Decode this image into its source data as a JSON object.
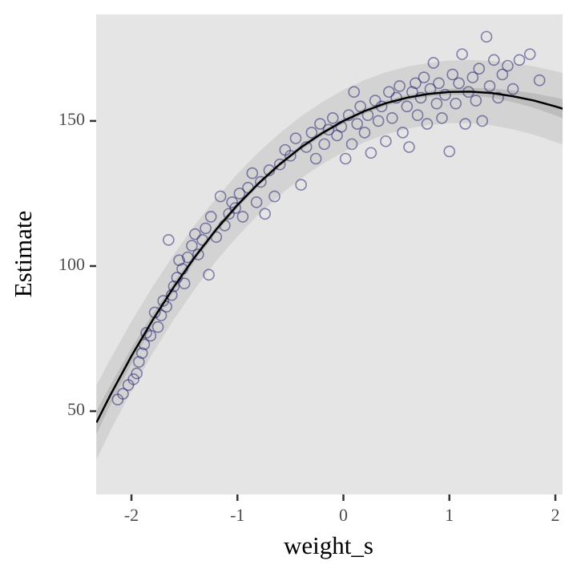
{
  "chart_data": {
    "type": "scatter",
    "xlabel": "weight_s",
    "ylabel": "Estimate",
    "xlim": [
      -2.333,
      2.068
    ],
    "ylim": [
      21.3,
      186.7
    ],
    "xticks": [
      -2,
      -1,
      0,
      1,
      2
    ],
    "yticks": [
      50,
      100,
      150
    ],
    "grid": false,
    "points": {
      "color": "#191970",
      "x": [
        -2.13,
        -2.08,
        -2.03,
        -1.98,
        -1.95,
        -1.93,
        -1.9,
        -1.88,
        -1.86,
        -1.82,
        -1.78,
        -1.75,
        -1.72,
        -1.7,
        -1.67,
        -1.65,
        -1.62,
        -1.6,
        -1.57,
        -1.55,
        -1.52,
        -1.5,
        -1.47,
        -1.43,
        -1.4,
        -1.37,
        -1.33,
        -1.3,
        -1.27,
        -1.25,
        -1.2,
        -1.16,
        -1.12,
        -1.08,
        -1.05,
        -1.02,
        -0.98,
        -0.95,
        -0.9,
        -0.86,
        -0.82,
        -0.78,
        -0.74,
        -0.7,
        -0.65,
        -0.6,
        -0.55,
        -0.5,
        -0.45,
        -0.4,
        -0.35,
        -0.3,
        -0.26,
        -0.22,
        -0.18,
        -0.14,
        -0.1,
        -0.06,
        -0.02,
        0.02,
        0.05,
        0.08,
        0.1,
        0.13,
        0.16,
        0.2,
        0.23,
        0.26,
        0.3,
        0.33,
        0.36,
        0.4,
        0.43,
        0.46,
        0.5,
        0.53,
        0.56,
        0.6,
        0.62,
        0.65,
        0.68,
        0.7,
        0.73,
        0.76,
        0.79,
        0.82,
        0.85,
        0.88,
        0.9,
        0.93,
        0.96,
        1.0,
        1.03,
        1.06,
        1.09,
        1.12,
        1.15,
        1.18,
        1.22,
        1.25,
        1.28,
        1.31,
        1.35,
        1.38,
        1.42,
        1.46,
        1.5,
        1.55,
        1.6,
        1.66,
        1.76,
        1.85
      ],
      "y": [
        54,
        56,
        59,
        61,
        63,
        67,
        70,
        73,
        77,
        76,
        84,
        79,
        83,
        88,
        86,
        109,
        90,
        93,
        96,
        102,
        99,
        94,
        103,
        107,
        111,
        104,
        109,
        113,
        97,
        117,
        110,
        124,
        114,
        118,
        122,
        120,
        125,
        117,
        127,
        132,
        122,
        129,
        118,
        133,
        124,
        135,
        140,
        138,
        144,
        128,
        141,
        146,
        137,
        149,
        142,
        147,
        151,
        145,
        148,
        137,
        152,
        142,
        160,
        149,
        155,
        146,
        152,
        139,
        157,
        150,
        155,
        143,
        160,
        151,
        158,
        162,
        146,
        155,
        141,
        160,
        163,
        152,
        158,
        165,
        149,
        161,
        170,
        156,
        163,
        151,
        159,
        139.5,
        166,
        156,
        163,
        173,
        149,
        160,
        165,
        157,
        168,
        150,
        179,
        162,
        171,
        158,
        166,
        169,
        161,
        171,
        173,
        164
      ]
    },
    "fit": {
      "color": "#000000",
      "x": [
        -2.33,
        -2.2,
        -2,
        -1.8,
        -1.6,
        -1.4,
        -1.2,
        -1,
        -0.8,
        -0.6,
        -0.4,
        -0.2,
        0,
        0.2,
        0.4,
        0.6,
        0.8,
        1,
        1.2,
        1.4,
        1.6,
        1.8,
        2,
        2.07
      ],
      "y": [
        46.1,
        55.5,
        69.0,
        81.4,
        92.8,
        103.2,
        112.6,
        121.0,
        128.5,
        135.1,
        140.9,
        145.8,
        150,
        153.4,
        156.1,
        158.0,
        159.3,
        160.0,
        160.1,
        159.6,
        158.5,
        157.0,
        155.0,
        154.2
      ]
    },
    "mean_band": {
      "color": "#bdbdbd",
      "lower": [
        42.1,
        52.1,
        66.3,
        79.3,
        91.1,
        101.8,
        111.4,
        119.9,
        127.5,
        134.1,
        139.9,
        144.8,
        149,
        152.4,
        155.1,
        157.0,
        158.3,
        158.9,
        158.8,
        158.0,
        156.5,
        154.5,
        151.9,
        150.9
      ],
      "upper": [
        50.1,
        58.9,
        71.7,
        83.5,
        94.5,
        104.6,
        113.8,
        122.1,
        129.5,
        136.1,
        141.9,
        146.8,
        151,
        154.4,
        157.1,
        159.0,
        160.3,
        161.1,
        161.4,
        161.2,
        160.5,
        159.5,
        158.1,
        157.5
      ]
    },
    "prediction_band": {
      "color": "#d3d3d3",
      "lower": [
        33.3,
        43.1,
        57.1,
        69.9,
        81.6,
        92.2,
        101.8,
        110.2,
        117.8,
        124.4,
        130.2,
        135.1,
        139.3,
        142.7,
        145.4,
        147.3,
        148.6,
        149.2,
        149.2,
        148.5,
        147.1,
        145.2,
        142.8,
        141.9
      ],
      "upper": [
        58.9,
        67.9,
        80.9,
        92.9,
        104.0,
        114.2,
        123.4,
        131.8,
        139.2,
        145.8,
        151.6,
        156.5,
        160.7,
        164.1,
        166.8,
        168.7,
        170.0,
        170.8,
        171.0,
        170.7,
        169.9,
        168.8,
        167.2,
        166.5
      ]
    }
  }
}
